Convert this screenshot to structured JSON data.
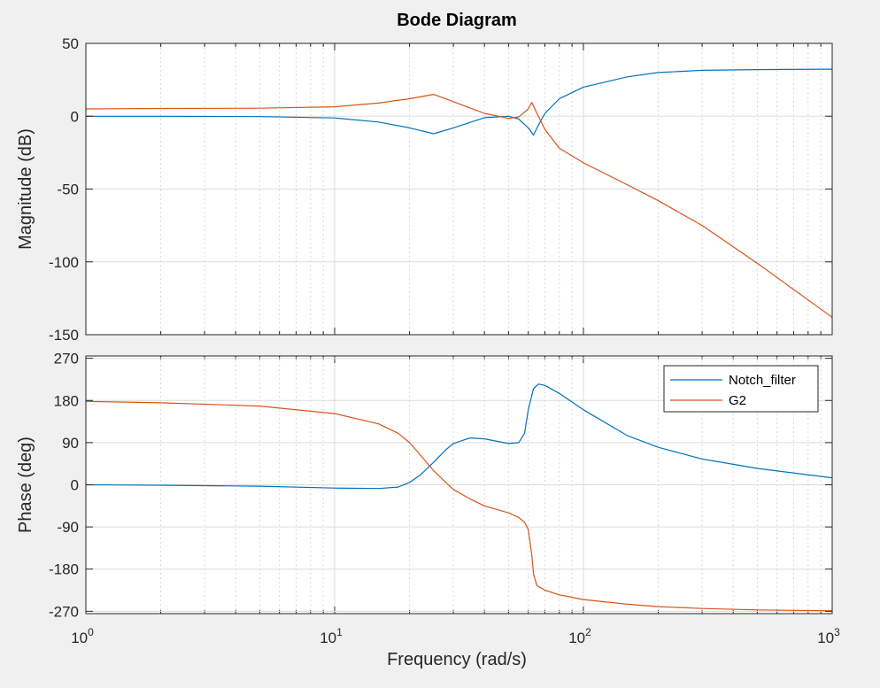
{
  "title": "Bode Diagram",
  "xlabel": "Frequency  (rad/s)",
  "colors": {
    "notch": "#0072bd",
    "g2": "#d95319",
    "background": "#f0f0f0",
    "axes_bg": "#ffffff"
  },
  "chart_data": {
    "type": "line",
    "title": "Bode Diagram",
    "xscale": "log",
    "xlim": [
      1,
      1000
    ],
    "xticks": [
      {
        "base": "10",
        "exp": "0"
      },
      {
        "base": "10",
        "exp": "1"
      },
      {
        "base": "10",
        "exp": "2"
      },
      {
        "base": "10",
        "exp": "3"
      }
    ],
    "xlabel": "Frequency  (rad/s)",
    "grid": true,
    "legend": {
      "placement": "top-right",
      "entries": [
        "Notch_filter",
        "G2"
      ]
    },
    "panels": [
      {
        "name": "magnitude",
        "ylabel": "Magnitude (dB)",
        "ylim": [
          -150,
          50
        ],
        "yticks": [
          "50",
          "0",
          "-50",
          "-100",
          "-150"
        ],
        "series": [
          {
            "name": "Notch_filter",
            "x": [
              1,
              2,
              5,
              10,
              15,
              20,
              25,
              30,
              40,
              50,
              55,
              60,
              63,
              66,
              70,
              80,
              100,
              150,
              200,
              300,
              500,
              1000
            ],
            "y": [
              0,
              0,
              -0.3,
              -1.2,
              -4,
              -8,
              -12,
              -8,
              -1,
              0,
              -2,
              -8,
              -13,
              -6,
              2,
              12,
              20,
              27,
              30,
              31.5,
              32,
              32.3
            ]
          },
          {
            "name": "G2",
            "x": [
              1,
              2,
              5,
              10,
              15,
              20,
              25,
              30,
              40,
              50,
              55,
              60,
              62,
              65,
              70,
              80,
              100,
              150,
              200,
              300,
              500,
              1000
            ],
            "y": [
              5,
              5.3,
              5.5,
              6.5,
              9,
              12,
              15,
              10,
              2,
              -1.5,
              -0.5,
              5,
              9.5,
              2,
              -9,
              -22,
              -32,
              -47,
              -58,
              -75,
              -101,
              -138
            ]
          }
        ]
      },
      {
        "name": "phase",
        "ylabel": "Phase (deg)",
        "ylim": [
          -275,
          275
        ],
        "yticks": [
          "270",
          "180",
          "90",
          "0",
          "-90",
          "-180",
          "-270"
        ],
        "series": [
          {
            "name": "Notch_filter",
            "x": [
              1,
              2,
              5,
              10,
              15,
              18,
              20,
              22,
              25,
              28,
              30,
              35,
              40,
              50,
              55,
              58,
              60,
              63,
              66,
              70,
              80,
              100,
              150,
              200,
              300,
              500,
              1000
            ],
            "y": [
              0,
              -1,
              -3,
              -7,
              -8,
              -5,
              5,
              20,
              48,
              75,
              88,
              100,
              98,
              88,
              90,
              110,
              160,
              205,
              215,
              212,
              195,
              160,
              105,
              80,
              55,
              35,
              15
            ]
          },
          {
            "name": "G2",
            "x": [
              1,
              2,
              5,
              10,
              15,
              18,
              20,
              22,
              25,
              28,
              30,
              35,
              40,
              50,
              55,
              58,
              60,
              62,
              63,
              65,
              70,
              80,
              100,
              150,
              200,
              300,
              500,
              1000
            ],
            "y": [
              178,
              175,
              168,
              152,
              130,
              110,
              90,
              65,
              30,
              5,
              -10,
              -30,
              -45,
              -60,
              -70,
              -80,
              -95,
              -150,
              -190,
              -215,
              -225,
              -235,
              -245,
              -255,
              -260,
              -264,
              -267,
              -269
            ]
          }
        ]
      }
    ]
  }
}
